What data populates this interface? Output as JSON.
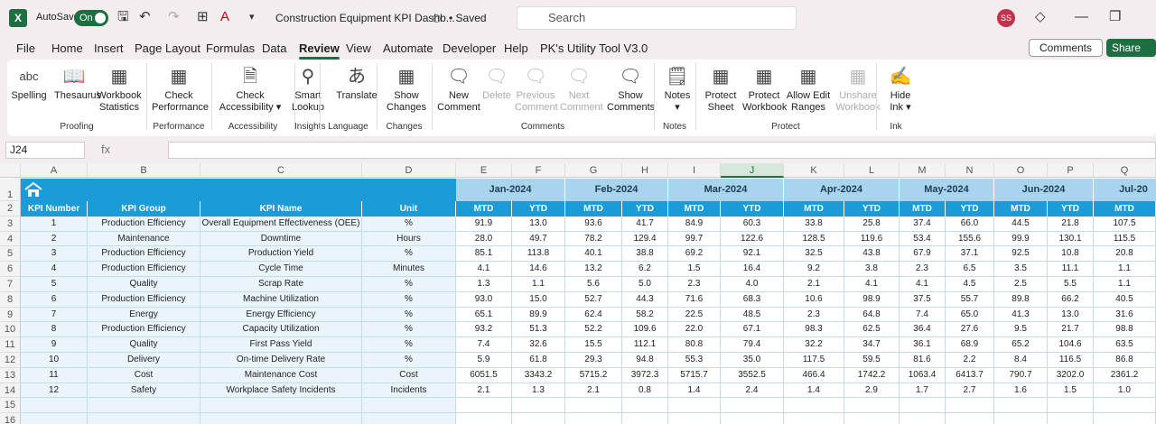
{
  "titlebar": {
    "app_logo": "X",
    "autosave_label": "AutoSave",
    "autosave_state": "On",
    "doc_title": "Construction Equipment KPI Dashb...",
    "saved_status": "• Saved",
    "search_placeholder": "Search",
    "user_initials": "SS"
  },
  "menu": {
    "items": [
      "File",
      "Home",
      "Insert",
      "Page Layout",
      "Formulas",
      "Data",
      "Review",
      "View",
      "Automate",
      "Developer",
      "Help",
      "PK's Utility Tool V3.0"
    ],
    "active": "Review",
    "comments_label": "Comments",
    "share_label": "Share"
  },
  "ribbon": {
    "buttons": [
      {
        "label": "Spelling",
        "icon": "spelling-icon",
        "glyph": "abc"
      },
      {
        "label": "Thesaurus",
        "icon": "thesaurus-icon",
        "glyph": "📖"
      },
      {
        "label": "Workbook Statistics",
        "icon": "workbook-statistics-icon",
        "glyph": "▦"
      },
      {
        "label": "Check Performance",
        "icon": "check-performance-icon",
        "glyph": "▦"
      },
      {
        "label": "Check Accessibility",
        "icon": "check-accessibility-icon",
        "glyph": "🗎"
      },
      {
        "label": "Smart Lookup",
        "icon": "smart-lookup-icon",
        "glyph": "⚲"
      },
      {
        "label": "Translate",
        "icon": "translate-icon",
        "glyph": "あ"
      },
      {
        "label": "Show Changes",
        "icon": "show-changes-icon",
        "glyph": "▦"
      },
      {
        "label": "New Comment",
        "icon": "new-comment-icon",
        "glyph": "🗨"
      },
      {
        "label": "Delete",
        "icon": "delete-comment-icon",
        "glyph": "🗨"
      },
      {
        "label": "Previous Comment",
        "icon": "previous-comment-icon",
        "glyph": "🗨"
      },
      {
        "label": "Next Comment",
        "icon": "next-comment-icon",
        "glyph": "🗨"
      },
      {
        "label": "Show Comments",
        "icon": "show-comments-icon",
        "glyph": "🗨"
      },
      {
        "label": "Notes",
        "icon": "notes-icon",
        "glyph": "🗒"
      },
      {
        "label": "Protect Sheet",
        "icon": "protect-sheet-icon",
        "glyph": "▦"
      },
      {
        "label": "Protect Workbook",
        "icon": "protect-workbook-icon",
        "glyph": "▦"
      },
      {
        "label": "Allow Edit Ranges",
        "icon": "allow-edit-ranges-icon",
        "glyph": "▦"
      },
      {
        "label": "Unshare Workbook",
        "icon": "unshare-workbook-icon",
        "glyph": "▦"
      },
      {
        "label": "Hide Ink",
        "icon": "hide-ink-icon",
        "glyph": "✍"
      }
    ],
    "groups": [
      "Proofing",
      "Performance",
      "Accessibility",
      "Insights",
      "Language",
      "Changes",
      "Comments",
      "Notes",
      "Protect",
      "Ink"
    ]
  },
  "formula_bar": {
    "name_box": "J24",
    "fx": "fx",
    "formula": ""
  },
  "columns": [
    "A",
    "B",
    "C",
    "D",
    "E",
    "F",
    "G",
    "H",
    "I",
    "J",
    "K",
    "L",
    "M",
    "N",
    "O",
    "P",
    "Q"
  ],
  "selected_column": "J",
  "rows": [
    "1",
    "2",
    "3",
    "4",
    "5",
    "6",
    "7",
    "8",
    "9",
    "10",
    "11",
    "12",
    "13",
    "14",
    "15",
    "16"
  ],
  "sheet": {
    "months": [
      "Jan-2024",
      "Feb-2024",
      "Mar-2024",
      "Apr-2024",
      "May-2024",
      "Jun-2024",
      "Jul-20"
    ],
    "headers": [
      "KPI Number",
      "KPI Group",
      "KPI Name",
      "Unit"
    ],
    "mtd": "MTD",
    "ytd": "YTD",
    "kpis": [
      {
        "n": "1",
        "group": "Production Efficiency",
        "name": "Overall Equipment Effectiveness (OEE)",
        "unit": "%",
        "vals": [
          "91.9",
          "13.0",
          "93.6",
          "41.7",
          "84.9",
          "60.3",
          "33.8",
          "25.8",
          "37.4",
          "66.0",
          "44.5",
          "21.8",
          "107.5"
        ]
      },
      {
        "n": "2",
        "group": "Maintenance",
        "name": "Downtime",
        "unit": "Hours",
        "vals": [
          "28.0",
          "49.7",
          "78.2",
          "129.4",
          "99.7",
          "122.6",
          "128.5",
          "119.6",
          "53.4",
          "155.6",
          "99.9",
          "130.1",
          "115.5"
        ]
      },
      {
        "n": "3",
        "group": "Production Efficiency",
        "name": "Production Yield",
        "unit": "%",
        "vals": [
          "85.1",
          "113.8",
          "40.1",
          "38.8",
          "69.2",
          "92.1",
          "32.5",
          "43.8",
          "67.9",
          "37.1",
          "92.5",
          "10.8",
          "20.8"
        ]
      },
      {
        "n": "4",
        "group": "Production Efficiency",
        "name": "Cycle Time",
        "unit": "Minutes",
        "vals": [
          "4.1",
          "14.6",
          "13.2",
          "6.2",
          "1.5",
          "16.4",
          "9.2",
          "3.8",
          "2.3",
          "6.5",
          "3.5",
          "11.1",
          "1.1"
        ]
      },
      {
        "n": "5",
        "group": "Quality",
        "name": "Scrap Rate",
        "unit": "%",
        "vals": [
          "1.3",
          "1.1",
          "5.6",
          "5.0",
          "2.3",
          "4.0",
          "2.1",
          "4.1",
          "4.1",
          "4.5",
          "2.5",
          "5.5",
          "1.1"
        ]
      },
      {
        "n": "6",
        "group": "Production Efficiency",
        "name": "Machine Utilization",
        "unit": "%",
        "vals": [
          "93.0",
          "15.0",
          "52.7",
          "44.3",
          "71.6",
          "68.3",
          "10.6",
          "98.9",
          "37.5",
          "55.7",
          "89.8",
          "66.2",
          "40.5"
        ]
      },
      {
        "n": "7",
        "group": "Energy",
        "name": "Energy Efficiency",
        "unit": "%",
        "vals": [
          "65.1",
          "89.9",
          "62.4",
          "58.2",
          "22.5",
          "48.5",
          "2.3",
          "64.8",
          "7.4",
          "65.0",
          "41.3",
          "13.0",
          "31.6"
        ]
      },
      {
        "n": "8",
        "group": "Production Efficiency",
        "name": "Capacity Utilization",
        "unit": "%",
        "vals": [
          "93.2",
          "51.3",
          "52.2",
          "109.6",
          "22.0",
          "67.1",
          "98.3",
          "62.5",
          "36.4",
          "27.6",
          "9.5",
          "21.7",
          "98.8"
        ]
      },
      {
        "n": "9",
        "group": "Quality",
        "name": "First Pass Yield",
        "unit": "%",
        "vals": [
          "7.4",
          "32.6",
          "15.5",
          "112.1",
          "80.8",
          "79.4",
          "32.2",
          "34.7",
          "36.1",
          "68.9",
          "65.2",
          "104.6",
          "63.5"
        ]
      },
      {
        "n": "10",
        "group": "Delivery",
        "name": "On-time Delivery Rate",
        "unit": "%",
        "vals": [
          "5.9",
          "61.8",
          "29.3",
          "94.8",
          "55.3",
          "35.0",
          "117.5",
          "59.5",
          "81.6",
          "2.2",
          "8.4",
          "116.5",
          "86.8"
        ]
      },
      {
        "n": "11",
        "group": "Cost",
        "name": "Maintenance Cost",
        "unit": "Cost",
        "vals": [
          "6051.5",
          "3343.2",
          "5715.2",
          "3972.3",
          "5715.7",
          "3552.5",
          "466.4",
          "1742.2",
          "1063.4",
          "6413.7",
          "790.7",
          "3202.0",
          "2361.2"
        ]
      },
      {
        "n": "12",
        "group": "Safety",
        "name": "Workplace Safety Incidents",
        "unit": "Incidents",
        "vals": [
          "2.1",
          "1.3",
          "2.1",
          "0.8",
          "1.4",
          "2.4",
          "1.4",
          "2.9",
          "1.7",
          "2.7",
          "1.6",
          "1.5",
          "1.0"
        ]
      }
    ]
  },
  "colors": {
    "band": "#1b9bd7",
    "month": "#a9d4ee",
    "accent": "#1d6f42",
    "row_light": "#eaf5fb"
  }
}
